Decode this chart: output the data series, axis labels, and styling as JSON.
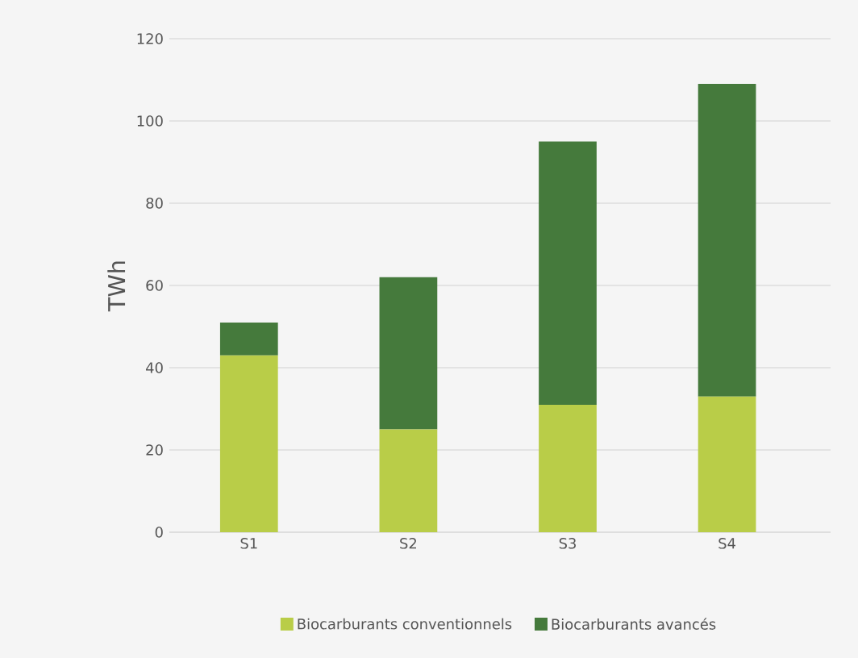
{
  "chart_data": {
    "type": "bar",
    "stacked": true,
    "ylabel": "TWh",
    "categories": [
      "S1",
      "S2",
      "S3",
      "S4"
    ],
    "series": [
      {
        "name": "Biocarburants conventionnels",
        "color": "#b9cd48",
        "values": [
          43,
          25,
          31,
          33
        ]
      },
      {
        "name": "Biocarburants avancés",
        "color": "#457a3c",
        "values": [
          8,
          37,
          64,
          76
        ]
      }
    ],
    "ylim": [
      0,
      120
    ],
    "yticks": [
      0,
      20,
      40,
      60,
      80,
      100,
      120
    ],
    "grid": "y",
    "legend": "bottom"
  }
}
